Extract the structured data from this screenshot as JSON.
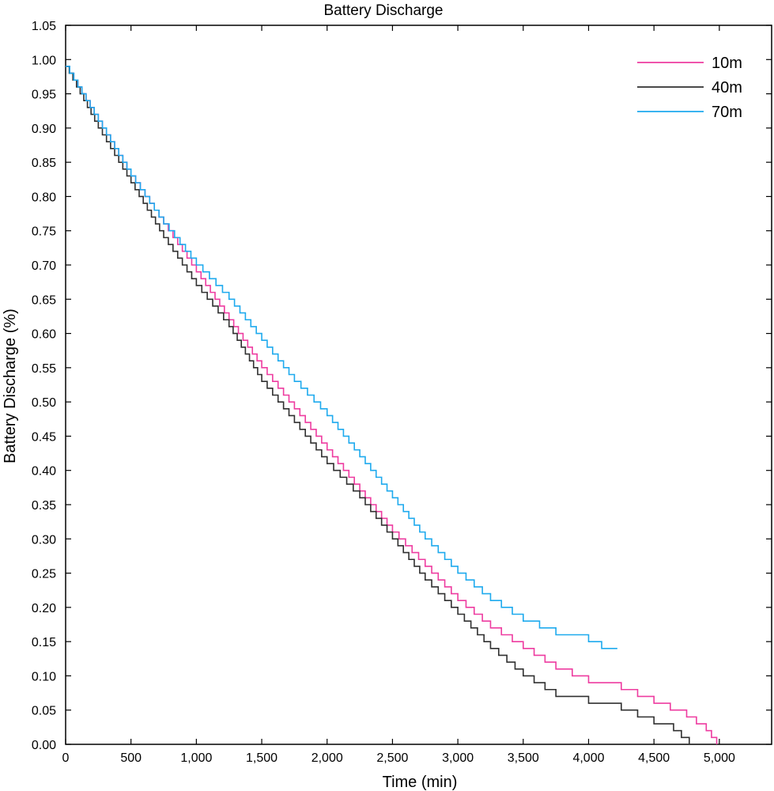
{
  "chart_data": {
    "type": "line",
    "title": "Battery Discharge",
    "xlabel": "Time (min)",
    "ylabel": "Battery Discharge (%)",
    "xlim": [
      0,
      5400
    ],
    "ylim": [
      0,
      1.05
    ],
    "x_ticks": [
      0,
      500,
      1000,
      1500,
      2000,
      2500,
      3000,
      3500,
      4000,
      4500,
      5000
    ],
    "x_tick_labels": [
      "0",
      "500",
      "1,000",
      "1,500",
      "2,000",
      "2,500",
      "3,000",
      "3,500",
      "4,000",
      "4,500",
      "5,000"
    ],
    "y_ticks": [
      0,
      0.05,
      0.1,
      0.15,
      0.2,
      0.25,
      0.3,
      0.35,
      0.4,
      0.45,
      0.5,
      0.55,
      0.6,
      0.65,
      0.7,
      0.75,
      0.8,
      0.85,
      0.9,
      0.95,
      1.0,
      1.05
    ],
    "y_tick_labels": [
      "0.00",
      "0.05",
      "0.10",
      "0.15",
      "0.20",
      "0.25",
      "0.30",
      "0.35",
      "0.40",
      "0.45",
      "0.50",
      "0.55",
      "0.60",
      "0.65",
      "0.70",
      "0.75",
      "0.80",
      "0.85",
      "0.90",
      "0.95",
      "1.00",
      "1.05"
    ],
    "grid": false,
    "legend_position": "top-right",
    "step": true,
    "series": [
      {
        "name": "10m",
        "color": "#ee3ca0",
        "x": [
          0,
          250,
          500,
          750,
          1000,
          1250,
          1500,
          1750,
          2000,
          2250,
          2500,
          2750,
          3000,
          3250,
          3500,
          3750,
          4000,
          4250,
          4500,
          4750,
          4900,
          4980
        ],
        "y": [
          0.99,
          0.91,
          0.83,
          0.76,
          0.69,
          0.62,
          0.55,
          0.49,
          0.43,
          0.37,
          0.31,
          0.26,
          0.21,
          0.17,
          0.14,
          0.11,
          0.09,
          0.08,
          0.06,
          0.04,
          0.02,
          0.0
        ]
      },
      {
        "name": "40m",
        "color": "#303030",
        "x": [
          0,
          250,
          500,
          750,
          1000,
          1250,
          1500,
          1750,
          2000,
          2250,
          2500,
          2750,
          3000,
          3250,
          3500,
          3750,
          4000,
          4250,
          4500,
          4650,
          4770
        ],
        "y": [
          0.99,
          0.9,
          0.82,
          0.74,
          0.67,
          0.61,
          0.53,
          0.47,
          0.41,
          0.36,
          0.3,
          0.24,
          0.19,
          0.14,
          0.1,
          0.07,
          0.06,
          0.05,
          0.03,
          0.02,
          0.0
        ]
      },
      {
        "name": "70m",
        "color": "#1eaaee",
        "x": [
          0,
          250,
          500,
          750,
          1000,
          1250,
          1500,
          1750,
          2000,
          2250,
          2500,
          2750,
          3000,
          3250,
          3500,
          3750,
          4000,
          4100,
          4220
        ],
        "y": [
          0.99,
          0.91,
          0.83,
          0.76,
          0.7,
          0.65,
          0.59,
          0.53,
          0.48,
          0.42,
          0.36,
          0.3,
          0.25,
          0.21,
          0.18,
          0.16,
          0.15,
          0.14,
          0.14
        ]
      }
    ]
  }
}
